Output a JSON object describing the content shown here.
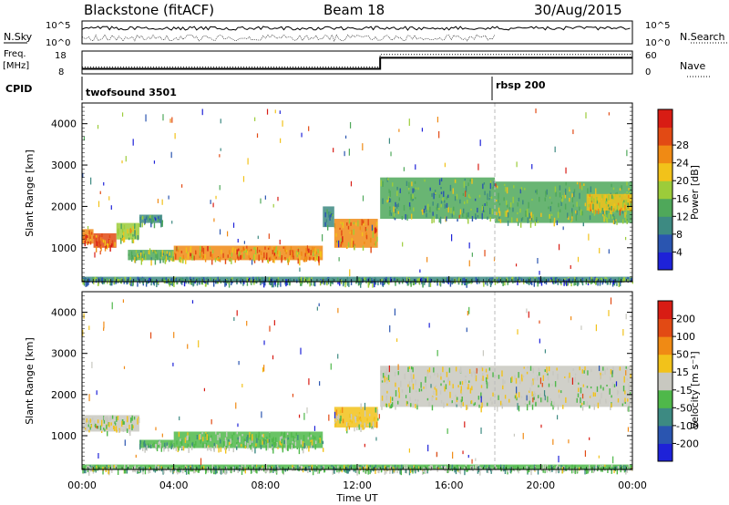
{
  "header": {
    "station": "Blackstone (fitACF)",
    "beam": "Beam 18",
    "date": "30/Aug/2015"
  },
  "side_labels": {
    "nsky": "N.Sky",
    "nsearch": "N.Search",
    "freq": "Freq.",
    "freq_unit": "[MHz]",
    "nave": "Nave",
    "cpid": "CPID"
  },
  "mini_axes": {
    "count_left_top": "10^5",
    "count_left_bottom": "10^0",
    "count_right_top": "10^5",
    "count_right_bottom": "10^0",
    "freq_left_top": "18",
    "freq_left_bottom": "8",
    "nave_right_top": "60",
    "nave_right_bottom": "0"
  },
  "cpid_labels": {
    "first": "twofsound 3501",
    "second": "rbsp 200"
  },
  "x_axis": {
    "label": "Time UT",
    "ticks": [
      "00:00",
      "04:00",
      "08:00",
      "12:00",
      "16:00",
      "20:00",
      "00:00"
    ]
  },
  "power_panel": {
    "ylabel": "Slant Range [km]",
    "yticks": [
      "1000",
      "2000",
      "3000",
      "4000"
    ],
    "colorbar_label": "Power [dB]",
    "colorbar_ticks": [
      "4",
      "8",
      "12",
      "16",
      "20",
      "24",
      "28"
    ],
    "colors": [
      "#1e22d8",
      "#2a55b0",
      "#3d8a82",
      "#4fa85a",
      "#9ccc3a",
      "#f2c21a",
      "#f08a14",
      "#e24a14",
      "#d81c14"
    ]
  },
  "velocity_panel": {
    "ylabel": "Slant Range [km]",
    "yticks": [
      "1000",
      "2000",
      "3000",
      "4000"
    ],
    "colorbar_label": "Velocity [m s⁻¹]",
    "colorbar_ticks": [
      "200",
      "100",
      "50",
      "15",
      "-15",
      "-50",
      "-100",
      "-200"
    ],
    "colors": [
      "#1e22d8",
      "#2a55b0",
      "#3d8a82",
      "#4fb84a",
      "#c8c8c0",
      "#f2c21a",
      "#f08a14",
      "#e24a14",
      "#d81c14"
    ]
  },
  "chart_data": [
    {
      "type": "line",
      "panel": "sky-search-counts",
      "x_range_hours": [
        0,
        24
      ],
      "yscale": "log",
      "ylim": [
        1,
        100000
      ]
    },
    {
      "type": "line",
      "panel": "frequency-nave",
      "x_range_hours": [
        0,
        24
      ],
      "series": [
        {
          "name": "Freq.",
          "segments": [
            {
              "x": [
                0,
                13
              ],
              "value": 10.5
            },
            {
              "x": [
                13,
                24
              ],
              "value": 16
            }
          ]
        },
        {
          "name": "Nave",
          "segments": [
            {
              "x": [
                0,
                13
              ],
              "value": 20
            },
            {
              "x": [
                13,
                24
              ],
              "value": 58
            }
          ]
        }
      ],
      "cpid_change_hour": 18
    },
    {
      "type": "heatmap",
      "panel": "power",
      "x_range_hours": [
        0,
        24
      ],
      "ylim_km": [
        180,
        4500
      ],
      "units": "dB",
      "bands": [
        {
          "t": [
            0,
            0.5
          ],
          "range_km": [
            1100,
            1450
          ],
          "value": 24
        },
        {
          "t": [
            0.5,
            1.5
          ],
          "range_km": [
            1000,
            1350
          ],
          "value": 26
        },
        {
          "t": [
            1.5,
            2.5
          ],
          "range_km": [
            1200,
            1600
          ],
          "value": 16
        },
        {
          "t": [
            2.5,
            3.5
          ],
          "range_km": [
            1600,
            1800
          ],
          "value": 10
        },
        {
          "t": [
            2,
            4
          ],
          "range_km": [
            700,
            950
          ],
          "value": 14
        },
        {
          "t": [
            4,
            10.5
          ],
          "range_km": [
            700,
            1050
          ],
          "value": 22
        },
        {
          "t": [
            10.5,
            11
          ],
          "range_km": [
            1500,
            2000
          ],
          "value": 10
        },
        {
          "t": [
            11,
            12.9
          ],
          "range_km": [
            1000,
            1700
          ],
          "value": 22
        },
        {
          "t": [
            13,
            18
          ],
          "range_km": [
            1700,
            2700
          ],
          "value": 12
        },
        {
          "t": [
            18,
            24
          ],
          "range_km": [
            1600,
            2600
          ],
          "value": 14
        },
        {
          "t": [
            22,
            24
          ],
          "range_km": [
            1900,
            2300
          ],
          "value": 18
        },
        {
          "t": [
            0,
            24
          ],
          "range_km": [
            180,
            300
          ],
          "value": 10
        }
      ]
    },
    {
      "type": "heatmap",
      "panel": "velocity",
      "x_range_hours": [
        0,
        24
      ],
      "ylim_km": [
        180,
        4500
      ],
      "units": "m s-1",
      "bands": [
        {
          "t": [
            0,
            2.5
          ],
          "range_km": [
            1100,
            1500
          ],
          "value": -5
        },
        {
          "t": [
            2.5,
            4
          ],
          "range_km": [
            700,
            900
          ],
          "value": -50
        },
        {
          "t": [
            4,
            10.5
          ],
          "range_km": [
            700,
            1100
          ],
          "value": -30
        },
        {
          "t": [
            11,
            12.9
          ],
          "range_km": [
            1200,
            1700
          ],
          "value": 30
        },
        {
          "t": [
            13,
            24
          ],
          "range_km": [
            1700,
            2700
          ],
          "value": 0
        },
        {
          "t": [
            0,
            24
          ],
          "range_km": [
            180,
            300
          ],
          "value": -40
        }
      ]
    }
  ]
}
